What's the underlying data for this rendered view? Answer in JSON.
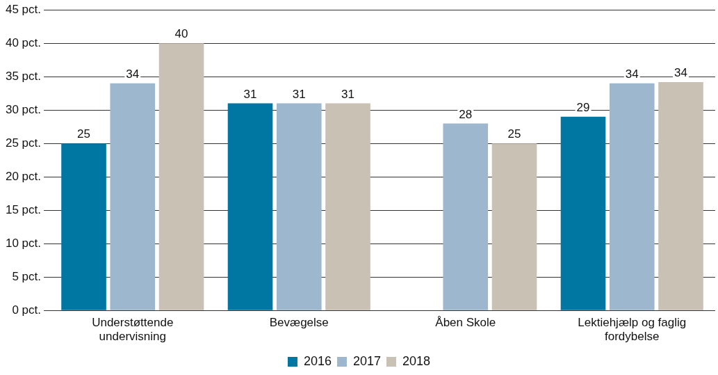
{
  "chart_data": {
    "type": "bar",
    "categories": [
      "Understøttende undervisning",
      "Bevægelse",
      "Åben Skole",
      "Lektiehjælp og faglig fordybelse"
    ],
    "series": [
      {
        "name": "2016",
        "color": "#0077a3",
        "values": [
          25,
          31,
          0,
          29
        ],
        "value_labels": [
          "25",
          "31",
          null,
          "29"
        ]
      },
      {
        "name": "2017",
        "color": "#9db7cf",
        "values": [
          34,
          31,
          28,
          34
        ],
        "value_labels": [
          "34",
          "31",
          "28",
          "34"
        ]
      },
      {
        "name": "2018",
        "color": "#c9c1b4",
        "values": [
          40,
          31,
          25,
          34.2
        ],
        "value_labels": [
          "40",
          "31",
          "25",
          "34"
        ]
      }
    ],
    "ylim": [
      0,
      45
    ],
    "yticks": [
      {
        "value": 0,
        "label": "0 pct."
      },
      {
        "value": 5,
        "label": "5 pct."
      },
      {
        "value": 10,
        "label": "10 pct."
      },
      {
        "value": 15,
        "label": "15 pct."
      },
      {
        "value": 20,
        "label": "20 pct."
      },
      {
        "value": 25,
        "label": "25 pct."
      },
      {
        "value": 30,
        "label": "30 pct."
      },
      {
        "value": 35,
        "label": "35 pct."
      },
      {
        "value": 40,
        "label": "40 pct."
      },
      {
        "value": 45,
        "label": "45 pct."
      }
    ],
    "grid": "y",
    "legend": "bottom"
  }
}
